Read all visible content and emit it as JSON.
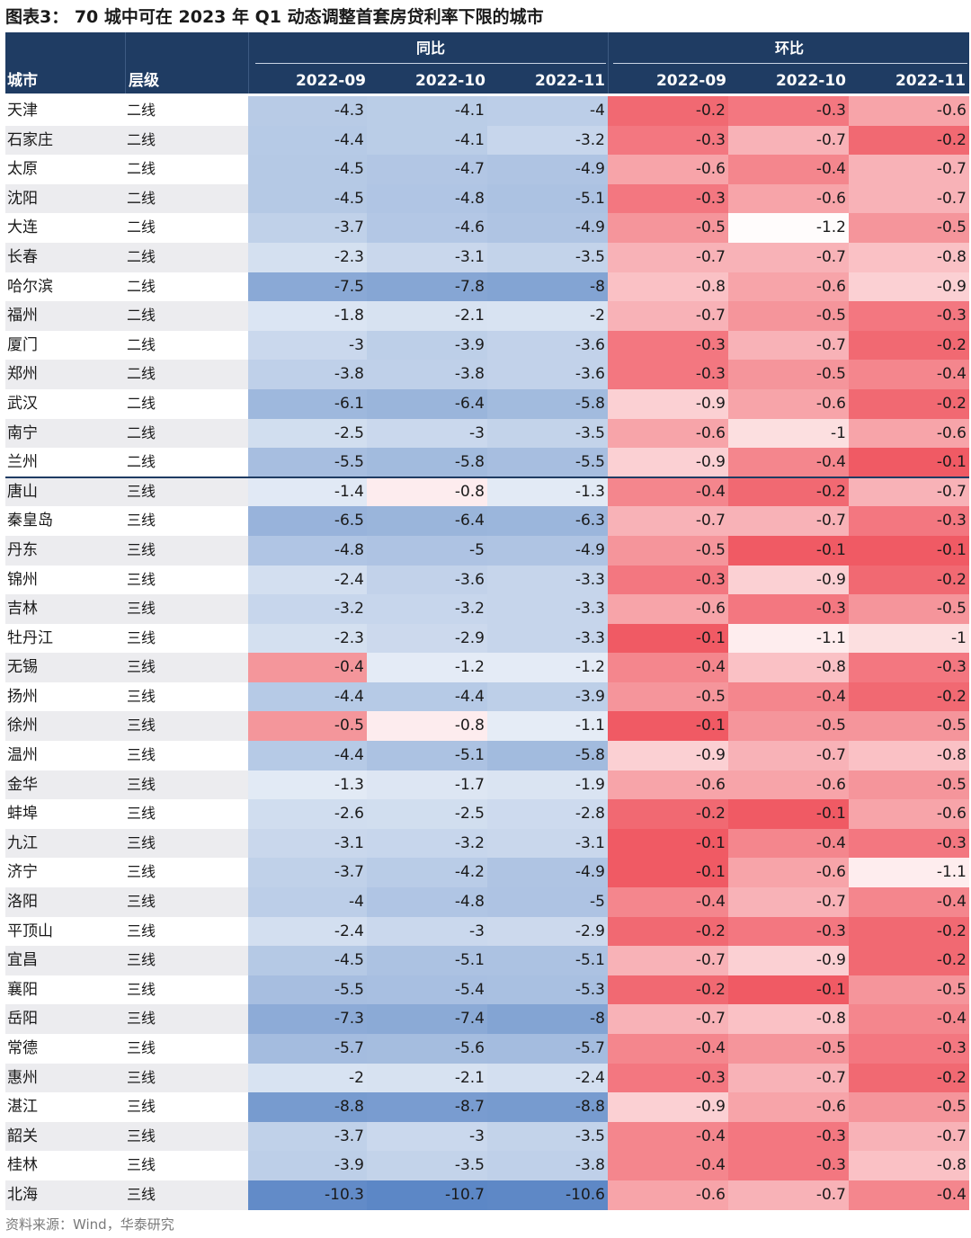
{
  "title": "图表3：  70 城中可在 2023 年 Q1 动态调整首套房贷利率下限的城市",
  "header": {
    "col_city": "城市",
    "col_tier": "层级",
    "group_yoy": "同比",
    "group_mom": "环比",
    "months": [
      "2022-09",
      "2022-10",
      "2022-11"
    ]
  },
  "colors": {
    "header_bg": "#1f3c63",
    "blue_scale_max": "#5b86c5",
    "red_scale_max": "#f0606a"
  },
  "rows": [
    {
      "city": "天津",
      "tier": "二线",
      "yoy": [
        -4.3,
        -4.1,
        -4
      ],
      "mom": [
        -0.2,
        -0.3,
        -0.6
      ]
    },
    {
      "city": "石家庄",
      "tier": "二线",
      "yoy": [
        -4.4,
        -4.1,
        -3.2
      ],
      "mom": [
        -0.3,
        -0.7,
        -0.2
      ]
    },
    {
      "city": "太原",
      "tier": "二线",
      "yoy": [
        -4.5,
        -4.7,
        -4.9
      ],
      "mom": [
        -0.6,
        -0.4,
        -0.7
      ]
    },
    {
      "city": "沈阳",
      "tier": "二线",
      "yoy": [
        -4.5,
        -4.8,
        -5.1
      ],
      "mom": [
        -0.3,
        -0.6,
        -0.7
      ]
    },
    {
      "city": "大连",
      "tier": "二线",
      "yoy": [
        -3.7,
        -4.6,
        -4.9
      ],
      "mom": [
        -0.5,
        -1.2,
        -0.5
      ]
    },
    {
      "city": "长春",
      "tier": "二线",
      "yoy": [
        -2.3,
        -3.1,
        -3.5
      ],
      "mom": [
        -0.7,
        -0.7,
        -0.8
      ]
    },
    {
      "city": "哈尔滨",
      "tier": "二线",
      "yoy": [
        -7.5,
        -7.8,
        -8
      ],
      "mom": [
        -0.8,
        -0.6,
        -0.9
      ]
    },
    {
      "city": "福州",
      "tier": "二线",
      "yoy": [
        -1.8,
        -2.1,
        -2
      ],
      "mom": [
        -0.7,
        -0.5,
        -0.3
      ]
    },
    {
      "city": "厦门",
      "tier": "二线",
      "yoy": [
        -3,
        -3.9,
        -3.6
      ],
      "mom": [
        -0.3,
        -0.7,
        -0.2
      ]
    },
    {
      "city": "郑州",
      "tier": "二线",
      "yoy": [
        -3.8,
        -3.8,
        -3.6
      ],
      "mom": [
        -0.3,
        -0.5,
        -0.4
      ]
    },
    {
      "city": "武汉",
      "tier": "二线",
      "yoy": [
        -6.1,
        -6.4,
        -5.8
      ],
      "mom": [
        -0.9,
        -0.6,
        -0.2
      ]
    },
    {
      "city": "南宁",
      "tier": "二线",
      "yoy": [
        -2.5,
        -3,
        -3.5
      ],
      "mom": [
        -0.6,
        -1,
        -0.6
      ]
    },
    {
      "city": "兰州",
      "tier": "二线",
      "yoy": [
        -5.5,
        -5.8,
        -5.5
      ],
      "mom": [
        -0.9,
        -0.4,
        -0.1
      ]
    },
    {
      "city": "唐山",
      "tier": "三线",
      "yoy": [
        -1.4,
        -0.8,
        -1.3
      ],
      "mom": [
        -0.4,
        -0.2,
        -0.7
      ]
    },
    {
      "city": "秦皇岛",
      "tier": "三线",
      "yoy": [
        -6.5,
        -6.4,
        -6.3
      ],
      "mom": [
        -0.7,
        -0.7,
        -0.3
      ]
    },
    {
      "city": "丹东",
      "tier": "三线",
      "yoy": [
        -4.8,
        -5,
        -4.9
      ],
      "mom": [
        -0.5,
        -0.1,
        -0.1
      ]
    },
    {
      "city": "锦州",
      "tier": "三线",
      "yoy": [
        -2.4,
        -3.6,
        -3.3
      ],
      "mom": [
        -0.3,
        -0.9,
        -0.2
      ]
    },
    {
      "city": "吉林",
      "tier": "三线",
      "yoy": [
        -3.2,
        -3.2,
        -3.3
      ],
      "mom": [
        -0.6,
        -0.3,
        -0.5
      ]
    },
    {
      "city": "牡丹江",
      "tier": "三线",
      "yoy": [
        -2.3,
        -2.9,
        -3.3
      ],
      "mom": [
        -0.1,
        -1.1,
        -1
      ]
    },
    {
      "city": "无锡",
      "tier": "三线",
      "yoy": [
        -0.4,
        -1.2,
        -1.2
      ],
      "mom": [
        -0.4,
        -0.8,
        -0.3
      ]
    },
    {
      "city": "扬州",
      "tier": "三线",
      "yoy": [
        -4.4,
        -4.4,
        -3.9
      ],
      "mom": [
        -0.5,
        -0.4,
        -0.2
      ]
    },
    {
      "city": "徐州",
      "tier": "三线",
      "yoy": [
        -0.5,
        -0.8,
        -1.1
      ],
      "mom": [
        -0.1,
        -0.5,
        -0.5
      ]
    },
    {
      "city": "温州",
      "tier": "三线",
      "yoy": [
        -4.4,
        -5.1,
        -5.8
      ],
      "mom": [
        -0.9,
        -0.7,
        -0.8
      ]
    },
    {
      "city": "金华",
      "tier": "三线",
      "yoy": [
        -1.3,
        -1.7,
        -1.9
      ],
      "mom": [
        -0.6,
        -0.6,
        -0.5
      ]
    },
    {
      "city": "蚌埠",
      "tier": "三线",
      "yoy": [
        -2.6,
        -2.5,
        -2.8
      ],
      "mom": [
        -0.2,
        -0.1,
        -0.6
      ]
    },
    {
      "city": "九江",
      "tier": "三线",
      "yoy": [
        -3.1,
        -3.2,
        -3.1
      ],
      "mom": [
        -0.1,
        -0.4,
        -0.3
      ]
    },
    {
      "city": "济宁",
      "tier": "三线",
      "yoy": [
        -3.7,
        -4.2,
        -4.9
      ],
      "mom": [
        -0.1,
        -0.6,
        -1.1
      ]
    },
    {
      "city": "洛阳",
      "tier": "三线",
      "yoy": [
        -4,
        -4.8,
        -5
      ],
      "mom": [
        -0.4,
        -0.7,
        -0.4
      ]
    },
    {
      "city": "平顶山",
      "tier": "三线",
      "yoy": [
        -2.4,
        -3,
        -2.9
      ],
      "mom": [
        -0.2,
        -0.3,
        -0.2
      ]
    },
    {
      "city": "宜昌",
      "tier": "三线",
      "yoy": [
        -4.5,
        -5.1,
        -5.1
      ],
      "mom": [
        -0.7,
        -0.9,
        -0.2
      ]
    },
    {
      "city": "襄阳",
      "tier": "三线",
      "yoy": [
        -5.5,
        -5.4,
        -5.3
      ],
      "mom": [
        -0.2,
        -0.1,
        -0.5
      ]
    },
    {
      "city": "岳阳",
      "tier": "三线",
      "yoy": [
        -7.3,
        -7.4,
        -8
      ],
      "mom": [
        -0.7,
        -0.8,
        -0.4
      ]
    },
    {
      "city": "常德",
      "tier": "三线",
      "yoy": [
        -5.7,
        -5.6,
        -5.7
      ],
      "mom": [
        -0.4,
        -0.5,
        -0.3
      ]
    },
    {
      "city": "惠州",
      "tier": "三线",
      "yoy": [
        -2,
        -2.1,
        -2.4
      ],
      "mom": [
        -0.3,
        -0.7,
        -0.2
      ]
    },
    {
      "city": "湛江",
      "tier": "三线",
      "yoy": [
        -8.8,
        -8.7,
        -8.8
      ],
      "mom": [
        -0.9,
        -0.6,
        -0.5
      ]
    },
    {
      "city": "韶关",
      "tier": "三线",
      "yoy": [
        -3.7,
        -3,
        -3.5
      ],
      "mom": [
        -0.4,
        -0.3,
        -0.7
      ]
    },
    {
      "city": "桂林",
      "tier": "三线",
      "yoy": [
        -3.9,
        -3.5,
        -3.8
      ],
      "mom": [
        -0.4,
        -0.3,
        -0.8
      ]
    },
    {
      "city": "北海",
      "tier": "三线",
      "yoy": [
        -10.3,
        -10.7,
        -10.6
      ],
      "mom": [
        -0.6,
        -0.7,
        -0.4
      ]
    }
  ],
  "footer": "资料来源：Wind，华泰研究"
}
